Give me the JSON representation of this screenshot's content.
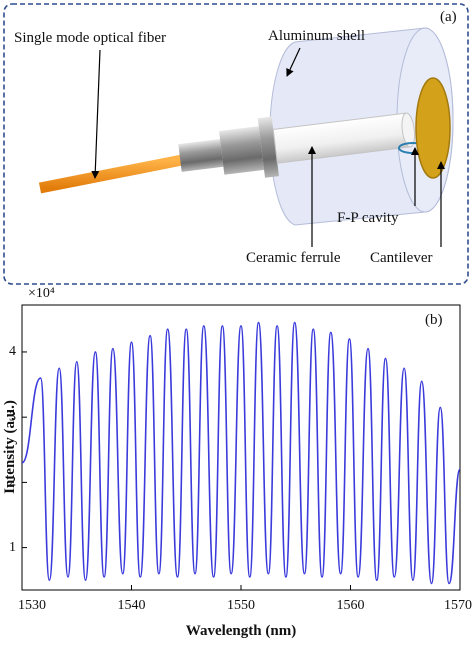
{
  "diagram": {
    "panel_label": "(a)",
    "fiber_label": "Single mode optical fiber",
    "shell_label": "Aluminum shell",
    "cavity_label": "F-P cavity",
    "ferrule_label": "Ceramic ferrule",
    "cantilever_label": "Cantilever"
  },
  "chart_data": {
    "type": "line",
    "panel_label": "(b)",
    "xlabel": "Wavelength (nm)",
    "ylabel": "Intensity (a.u.)",
    "y_multiplier": "×10⁴",
    "color": "#3b3bdc",
    "x": [
      1530,
      1531.7,
      1532.5,
      1533.4,
      1534.2,
      1535.0,
      1535.8,
      1536.7,
      1537.5,
      1538.3,
      1539.2,
      1540.0,
      1540.8,
      1541.7,
      1542.5,
      1543.3,
      1544.2,
      1545.0,
      1545.8,
      1546.6,
      1547.5,
      1548.3,
      1549.1,
      1550.0,
      1550.8,
      1551.6,
      1552.5,
      1553.3,
      1554.1,
      1554.9,
      1555.8,
      1556.6,
      1557.4,
      1558.2,
      1559.1,
      1559.9,
      1560.7,
      1561.6,
      1562.4,
      1563.2,
      1564.0,
      1564.9,
      1565.7,
      1566.5,
      1567.4,
      1568.2,
      1569.0,
      1570
    ],
    "values": [
      2.3,
      3.6,
      0.5,
      3.75,
      0.55,
      3.85,
      0.5,
      4.0,
      0.55,
      4.05,
      0.6,
      4.15,
      0.55,
      4.25,
      0.6,
      4.35,
      0.55,
      4.35,
      0.6,
      4.4,
      0.55,
      4.4,
      0.6,
      4.4,
      0.55,
      4.45,
      0.6,
      4.4,
      0.55,
      4.45,
      0.6,
      4.35,
      0.55,
      4.3,
      0.6,
      4.2,
      0.55,
      4.05,
      0.5,
      3.9,
      0.55,
      3.75,
      0.5,
      3.55,
      0.45,
      3.15,
      0.45,
      2.2
    ],
    "xlim": [
      1530,
      1570
    ],
    "xticks": [
      1530,
      1540,
      1550,
      1560,
      1570
    ],
    "ylim": [
      0.35,
      4.72
    ],
    "yticks": [
      1,
      2,
      3,
      4
    ],
    "grid": false
  }
}
